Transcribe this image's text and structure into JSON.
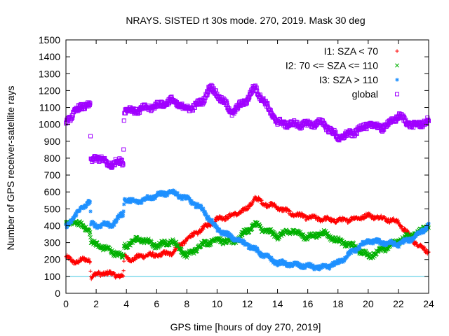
{
  "chart_data": {
    "type": "scatter",
    "title": "NRAYS. SISTED rt 30s mode. 270, 2019. Mask 30 deg",
    "xlabel": "GPS time [hours of doy 270, 2019]",
    "ylabel": "Number of GPS receiver-satellite rays",
    "xlim": [
      0,
      24
    ],
    "ylim": [
      0,
      1500
    ],
    "xticks": [
      "0",
      "2",
      "4",
      "6",
      "8",
      "10",
      "12",
      "14",
      "16",
      "18",
      "20",
      "22",
      "24"
    ],
    "yticks": [
      "0",
      "100",
      "200",
      "300",
      "400",
      "500",
      "600",
      "700",
      "800",
      "900",
      "1000",
      "1100",
      "1200",
      "1300",
      "1400",
      "1500"
    ],
    "legend_position": "top-right",
    "reference_line": {
      "y": 100,
      "color": "#40c8e0"
    },
    "series": [
      {
        "name": "I1: SZA < 70",
        "marker": "+",
        "color": "#ff0000",
        "x": [
          0,
          0.5,
          1,
          1.6,
          1.65,
          2,
          2.5,
          3,
          3.5,
          3.8,
          3.85,
          4.5,
          5,
          6,
          7,
          8,
          9,
          10,
          11,
          12,
          12.5,
          13,
          14,
          15,
          16,
          17,
          18,
          19,
          20,
          21,
          22,
          23,
          24
        ],
        "values": [
          215,
          185,
          195,
          200,
          100,
          110,
          120,
          115,
          105,
          100,
          215,
          200,
          225,
          225,
          240,
          320,
          380,
          440,
          460,
          500,
          565,
          535,
          510,
          470,
          450,
          440,
          430,
          440,
          460,
          445,
          420,
          310,
          240
        ]
      },
      {
        "name": "I2: 70 <= SZA <= 110",
        "marker": "x",
        "color": "#00b000",
        "x": [
          0,
          0.5,
          1,
          1.5,
          1.6,
          1.65,
          2,
          2.5,
          3,
          3.5,
          3.8,
          3.85,
          4.5,
          5,
          6,
          7,
          7.5,
          8,
          9,
          10,
          11,
          12,
          12.5,
          13,
          14,
          15,
          16,
          17,
          18,
          19,
          20,
          21,
          22,
          23,
          24
        ],
        "values": [
          400,
          430,
          400,
          380,
          360,
          300,
          290,
          270,
          250,
          230,
          210,
          280,
          310,
          320,
          280,
          310,
          270,
          220,
          290,
          320,
          300,
          370,
          410,
          380,
          340,
          370,
          330,
          360,
          310,
          280,
          220,
          260,
          310,
          350,
          400
        ]
      },
      {
        "name": "I3: SZA > 110",
        "marker": "*",
        "color": "#1e90ff",
        "x": [
          0,
          0.5,
          1,
          1.5,
          1.6,
          1.65,
          2,
          2.5,
          3,
          3.5,
          3.8,
          3.85,
          4.5,
          5,
          6,
          7,
          8,
          9,
          10,
          11,
          12,
          13,
          14,
          15,
          16,
          17,
          18,
          19,
          20,
          21,
          22,
          23,
          24
        ],
        "values": [
          390,
          450,
          500,
          540,
          540,
          410,
          400,
          410,
          400,
          450,
          470,
          560,
          540,
          550,
          580,
          600,
          560,
          500,
          380,
          330,
          290,
          230,
          180,
          170,
          160,
          150,
          180,
          250,
          310,
          300,
          290,
          330,
          400
        ]
      },
      {
        "name": "global",
        "marker": "square",
        "color": "#a000ff",
        "x": [
          0,
          0.5,
          1,
          1.5,
          1.6,
          1.65,
          2,
          2.5,
          3,
          3.5,
          3.8,
          3.85,
          4.5,
          5,
          6,
          7,
          8,
          9,
          9.5,
          10,
          11,
          12,
          12.5,
          13,
          14,
          15,
          16,
          17,
          18,
          19,
          20,
          21,
          22,
          23,
          24
        ],
        "values": [
          1020,
          1060,
          1110,
          1110,
          1100,
          780,
          810,
          780,
          760,
          780,
          780,
          1090,
          1080,
          1090,
          1110,
          1140,
          1090,
          1130,
          1220,
          1180,
          1070,
          1150,
          1220,
          1150,
          1010,
          1000,
          1000,
          1010,
          920,
          950,
          1000,
          980,
          1050,
          990,
          1020
        ]
      }
    ]
  }
}
